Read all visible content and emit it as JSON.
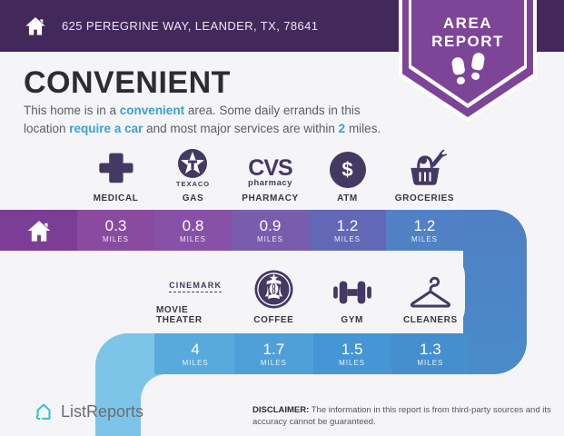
{
  "colors": {
    "header_bg": "#43295b",
    "badge_purple": "#7d4598",
    "page_bg": "#f5f4f6",
    "accent_blue": "#3aa0d8",
    "icon_dark": "#443963",
    "logo_teal": "#35c2c5",
    "row1_cells": [
      "#7b3d96",
      "#8a4aa0",
      "#8751a8",
      "#7a5cae",
      "#6267b6",
      "#5081c5"
    ],
    "row2_cells": [
      "#58aadd",
      "#4fa0d9",
      "#4496d5",
      "#458fce"
    ],
    "elbow_right_top": "#4f80c3",
    "elbow_right_bottom": "#4a8bca",
    "elbow_left": "#7cc5e9"
  },
  "header": {
    "address": "625 PEREGRINE WAY, LEANDER, TX, 78641"
  },
  "badge": {
    "line1": "AREA",
    "line2": "REPORT"
  },
  "summary": {
    "title": "CONVENIENT",
    "line1": [
      {
        "t": "This home is in a "
      },
      {
        "t": "convenient",
        "accent": true
      },
      {
        "t": " area. Some daily errands in this"
      }
    ],
    "line2": [
      {
        "t": "location "
      },
      {
        "t": "require a car",
        "accent": true
      },
      {
        "t": " and most major services are within "
      },
      {
        "t": "2",
        "accent": true
      },
      {
        "t": " miles."
      }
    ]
  },
  "row1": {
    "items": [
      {
        "label": "MEDICAL"
      },
      {
        "label": "GAS",
        "brand": "TEXACO"
      },
      {
        "label": "PHARMACY",
        "brand_top": "CVS",
        "brand_bottom": "pharmacy"
      },
      {
        "label": "ATM",
        "symbol": "$"
      },
      {
        "label": "GROCERIES"
      }
    ],
    "cells": [
      {
        "value": "0.3",
        "unit": "MILES"
      },
      {
        "value": "0.8",
        "unit": "MILES"
      },
      {
        "value": "0.9",
        "unit": "MILES"
      },
      {
        "value": "1.2",
        "unit": "MILES"
      },
      {
        "value": "1.2",
        "unit": "MILES"
      }
    ]
  },
  "row2": {
    "items": [
      {
        "label": "MOVIE THEATER",
        "brand": "CINEMARK"
      },
      {
        "label": "COFFEE"
      },
      {
        "label": "GYM"
      },
      {
        "label": "CLEANERS"
      }
    ],
    "cells": [
      {
        "value": "4",
        "unit": "MILES"
      },
      {
        "value": "1.7",
        "unit": "MILES"
      },
      {
        "value": "1.5",
        "unit": "MILES"
      },
      {
        "value": "1.3",
        "unit": "MILES"
      }
    ]
  },
  "footer": {
    "brand": "ListReports",
    "disclaimer_label": "DISCLAIMER:",
    "disclaimer_text": "The information in this report is from third-party sources and its accuracy cannot be guaranteed."
  }
}
